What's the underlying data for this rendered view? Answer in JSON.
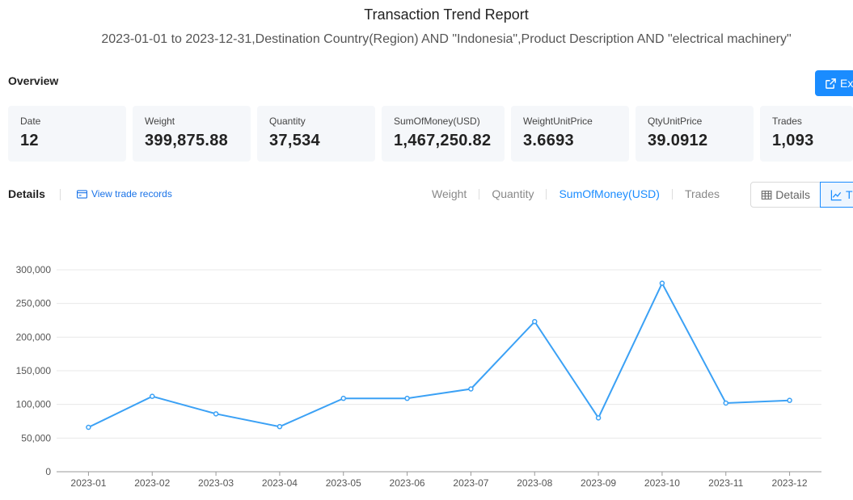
{
  "report": {
    "title": "Transaction Trend Report",
    "subtitle": "2023-01-01 to 2023-12-31,Destination Country(Region) AND \"Indonesia\",Product Description AND \"electrical machinery\""
  },
  "overview": {
    "label": "Overview",
    "export_label": "Ex",
    "stats": [
      {
        "label": "Date",
        "value": "12"
      },
      {
        "label": "Weight",
        "value": "399,875.88"
      },
      {
        "label": "Quantity",
        "value": "37,534"
      },
      {
        "label": "SumOfMoney(USD)",
        "value": "1,467,250.82"
      },
      {
        "label": "WeightUnitPrice",
        "value": "3.6693"
      },
      {
        "label": "QtyUnitPrice",
        "value": "39.0912"
      },
      {
        "label": "Trades",
        "value": "1,093"
      }
    ]
  },
  "details": {
    "label": "Details",
    "view_records": "View trade records",
    "metric_tabs": [
      "Weight",
      "Quantity",
      "SumOfMoney(USD)",
      "Trades"
    ],
    "active_tab": "SumOfMoney(USD)",
    "toggle_details": "Details",
    "toggle_trend": "T"
  },
  "colors": {
    "accent": "#1a8cff",
    "line": "#3ba1f5",
    "grid": "#e8e8e8"
  },
  "chart_data": {
    "type": "line",
    "categories": [
      "2023-01",
      "2023-02",
      "2023-03",
      "2023-04",
      "2023-05",
      "2023-06",
      "2023-07",
      "2023-08",
      "2023-09",
      "2023-10",
      "2023-11",
      "2023-12"
    ],
    "series": [
      {
        "values": [
          66000,
          112000,
          86000,
          67000,
          109000,
          109000,
          123000,
          223000,
          80000,
          280000,
          102000,
          106000
        ]
      }
    ],
    "y_ticks": [
      "0",
      "50,000",
      "100,000",
      "150,000",
      "200,000",
      "250,000",
      "300,000"
    ],
    "ylim": [
      0,
      300000
    ],
    "grid": true,
    "legend": "none"
  }
}
